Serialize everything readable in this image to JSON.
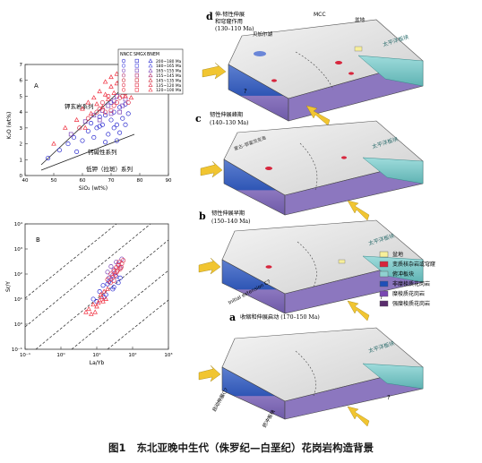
{
  "caption": {
    "fig": "图1",
    "text": "东北亚晚中生代（侏罗纪—白垩纪）花岗岩构造背景"
  },
  "plot_a": {
    "label": "A",
    "xlabel": "SiO₂ (wt%)",
    "ylabel": "K₂O (wt%)",
    "xticks": [
      "40",
      "50",
      "60",
      "70",
      "80",
      "90"
    ],
    "yticks": [
      "0",
      "1",
      "2",
      "3",
      "4",
      "5",
      "6",
      "7"
    ],
    "series_labels": [
      "钾玄岩系列",
      "钙碱性系列",
      "低钾（拉斑）系列"
    ],
    "legend": {
      "headers": [
        "NNCC",
        "SMGX",
        "BNEM"
      ],
      "rows": [
        "200~180 Ma",
        "180~165 Ma",
        "165~155 Ma",
        "155~145 Ma",
        "145~135 Ma",
        "135~120 Ma",
        "120~100 Ma"
      ],
      "colors": [
        "#2b2bd0",
        "#4a4ae0",
        "#7a3fb5",
        "#b03070",
        "#d02a3a",
        "#e0304a",
        "#f03040"
      ]
    }
  },
  "plot_b": {
    "label": "B",
    "xlabel": "La/Yb",
    "ylabel": "Sr/Y",
    "xticks": [
      "10⁻¹",
      "10⁰",
      "10¹",
      "10²",
      "10³"
    ],
    "yticks": [
      "10⁻¹",
      "10⁰",
      "10¹",
      "10²",
      "10³",
      "10⁴"
    ]
  },
  "blocks": {
    "d": {
      "letter": "d",
      "title": [
        "伸-韧性伸展",
        "和穹窿作用"
      ],
      "age": "(130–110 Ma)",
      "labels": [
        "MCC",
        "贝加尔湖",
        "盆地",
        "太平洋板块",
        "?"
      ]
    },
    "c": {
      "letter": "c",
      "title": [
        "韧性伸展峰期"
      ],
      "age": "(140–130 Ma)",
      "labels": [
        "太平洋板块",
        "蒙古–鄂霍茨克海"
      ]
    },
    "b": {
      "letter": "b",
      "title": [
        "韧性伸展早期"
      ],
      "age": "(150–140 Ma)",
      "labels": [
        "太平洋板块",
        "Initial extension C?",
        "?"
      ]
    },
    "a": {
      "letter": "a",
      "title": [
        "收缩和伸展启动 (170–150 Ma)"
      ],
      "labels": [
        "太平洋板块",
        "启动伸展C?",
        "俯冲板块",
        "?"
      ]
    }
  },
  "legend_right": [
    {
      "label": "盆地",
      "color": "#f7ef9a"
    },
    {
      "label": "变质核杂岩或穹窿",
      "color": "#d7263d"
    },
    {
      "label": "俯冲板块",
      "color": "#8fd1d1"
    },
    {
      "label": "非糜棱质花岗岩",
      "color": "#1f4fb8"
    },
    {
      "label": "糜棱质花岗岩",
      "color": "#7a47b3"
    },
    {
      "label": "强糜棱质花岗岩",
      "color": "#5a2d6e"
    }
  ],
  "scatter": {
    "a": {
      "blue_circles": [
        [
          48,
          1.1
        ],
        [
          52,
          1.6
        ],
        [
          55,
          2.0
        ],
        [
          57,
          2.4
        ],
        [
          60,
          2.2
        ],
        [
          62,
          2.8
        ],
        [
          63,
          3.3
        ],
        [
          65,
          3.0
        ],
        [
          66,
          3.7
        ],
        [
          67,
          3.2
        ],
        [
          68,
          3.8
        ],
        [
          69,
          2.6
        ],
        [
          70,
          3.5
        ],
        [
          71,
          4.0
        ],
        [
          72,
          3.2
        ],
        [
          73,
          4.3
        ],
        [
          74,
          3.6
        ],
        [
          75,
          4.5
        ],
        [
          76,
          3.9
        ],
        [
          72,
          2.2
        ],
        [
          68,
          2.1
        ],
        [
          64,
          2.4
        ],
        [
          58,
          1.5
        ],
        [
          70,
          4.6
        ],
        [
          66,
          3.1
        ],
        [
          71,
          3.0
        ],
        [
          75,
          3.2
        ],
        [
          73,
          2.7
        ]
      ],
      "purple_squares": [
        [
          56,
          2.6
        ],
        [
          61,
          3.4
        ],
        [
          64,
          3.8
        ],
        [
          67,
          4.1
        ],
        [
          69,
          4.4
        ],
        [
          71,
          4.7
        ],
        [
          73,
          4.0
        ],
        [
          75,
          4.8
        ],
        [
          66,
          3.5
        ],
        [
          70,
          3.9
        ],
        [
          72,
          5.0
        ],
        [
          74,
          4.4
        ]
      ],
      "red_triangles": [
        [
          50,
          2.0
        ],
        [
          54,
          3.0
        ],
        [
          58,
          3.5
        ],
        [
          60,
          4.2
        ],
        [
          62,
          4.6
        ],
        [
          64,
          4.9
        ],
        [
          66,
          5.3
        ],
        [
          68,
          5.1
        ],
        [
          70,
          5.6
        ],
        [
          72,
          5.8
        ],
        [
          74,
          5.4
        ],
        [
          76,
          5.7
        ],
        [
          65,
          4.5
        ],
        [
          69,
          4.8
        ],
        [
          71,
          5.2
        ],
        [
          73,
          6.0
        ],
        [
          75,
          5.0
        ],
        [
          63,
          3.9
        ],
        [
          67,
          4.3
        ],
        [
          77,
          4.9
        ],
        [
          61,
          3.0
        ],
        [
          70,
          6.2
        ],
        [
          68,
          5.9
        ],
        [
          72,
          6.4
        ]
      ],
      "red_circles": [
        [
          59,
          3.0
        ],
        [
          62,
          3.6
        ],
        [
          65,
          4.0
        ],
        [
          67,
          4.6
        ],
        [
          69,
          5.0
        ],
        [
          71,
          4.4
        ],
        [
          73,
          4.9
        ],
        [
          75,
          5.2
        ],
        [
          76,
          4.6
        ],
        [
          70,
          4.1
        ],
        [
          72,
          4.6
        ],
        [
          74,
          5.0
        ],
        [
          68,
          4.0
        ],
        [
          66,
          4.2
        ],
        [
          77,
          5.4
        ]
      ]
    },
    "b": {
      "blue_circles": [
        [
          8,
          10
        ],
        [
          12,
          20
        ],
        [
          15,
          35
        ],
        [
          20,
          40
        ],
        [
          25,
          60
        ],
        [
          30,
          30
        ],
        [
          18,
          15
        ],
        [
          10,
          8
        ],
        [
          22,
          50
        ],
        [
          35,
          80
        ],
        [
          40,
          45
        ],
        [
          28,
          25
        ],
        [
          16,
          12
        ],
        [
          45,
          70
        ]
      ],
      "purple_circles": [
        [
          20,
          120
        ],
        [
          25,
          200
        ],
        [
          30,
          150
        ],
        [
          35,
          300
        ],
        [
          40,
          250
        ],
        [
          28,
          90
        ],
        [
          45,
          180
        ],
        [
          22,
          70
        ],
        [
          50,
          400
        ],
        [
          32,
          110
        ]
      ],
      "red_triangles": [
        [
          6,
          4
        ],
        [
          8,
          6
        ],
        [
          10,
          5
        ],
        [
          12,
          9
        ],
        [
          14,
          12
        ],
        [
          9,
          3
        ],
        [
          7,
          2.5
        ],
        [
          11,
          7
        ],
        [
          13,
          15
        ],
        [
          16,
          20
        ],
        [
          18,
          10
        ],
        [
          20,
          25
        ],
        [
          5,
          3
        ],
        [
          15,
          8
        ]
      ],
      "red_circles": [
        [
          20,
          60
        ],
        [
          25,
          100
        ],
        [
          30,
          130
        ],
        [
          35,
          180
        ],
        [
          40,
          220
        ],
        [
          45,
          160
        ],
        [
          50,
          260
        ],
        [
          28,
          75
        ],
        [
          33,
          90
        ],
        [
          38,
          140
        ],
        [
          42,
          300
        ],
        [
          55,
          350
        ],
        [
          24,
          45
        ],
        [
          30,
          55
        ],
        [
          48,
          190
        ],
        [
          36,
          120
        ]
      ]
    }
  }
}
